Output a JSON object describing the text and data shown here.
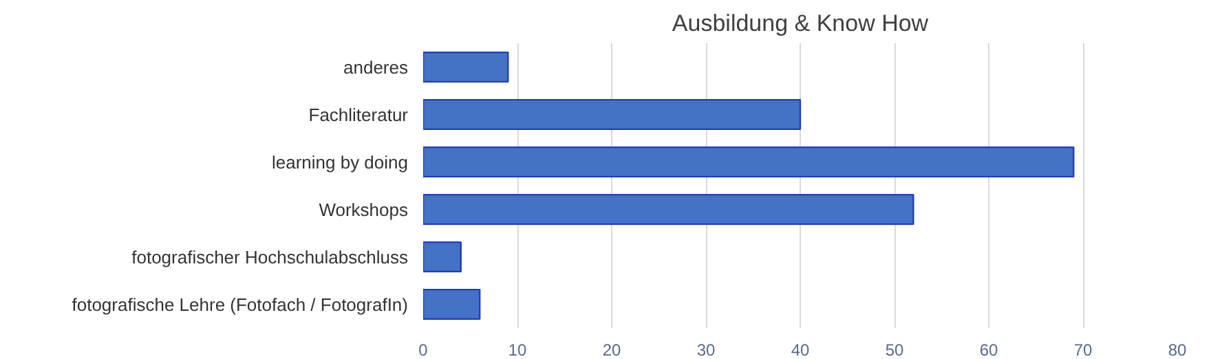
{
  "chart_data": {
    "type": "bar",
    "orientation": "horizontal",
    "title": "Ausbildung & Know How",
    "categories": [
      "anderes",
      "Fachliteratur",
      "learning by doing",
      "Workshops",
      "fotografischer Hochschulabschluss",
      "fotografische Lehre (Fotofach / FotografIn)"
    ],
    "values": [
      9,
      40,
      69,
      52,
      4,
      6
    ],
    "color": "#4472c4",
    "xlim": [
      0,
      80
    ],
    "xticks": [
      0,
      10,
      20,
      30,
      40,
      50,
      60,
      70,
      80
    ],
    "grid": "x"
  }
}
